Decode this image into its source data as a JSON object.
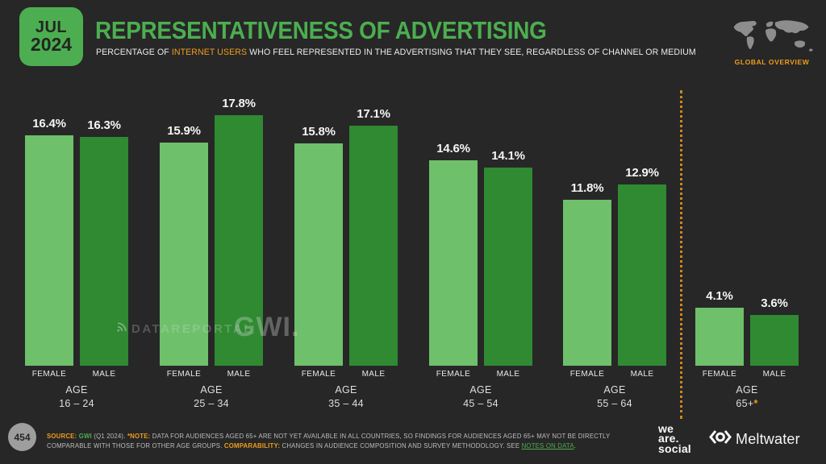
{
  "theme": {
    "bg": "#272727",
    "accent_green": "#4cae50",
    "bar_female": "#6ec06b",
    "bar_male": "#2f8a32",
    "orange": "#f09d1c",
    "dot_orange": "#cf8420"
  },
  "header": {
    "date_line1": "JUL",
    "date_line2": "2024",
    "title": "REPRESENTATIVENESS OF ADVERTISING",
    "subtitle_pre": "PERCENTAGE OF ",
    "subtitle_highlight": "INTERNET USERS",
    "subtitle_post": " WHO FEEL REPRESENTED IN THE ADVERTISING THAT THEY SEE, REGARDLESS OF CHANNEL OR MEDIUM",
    "global_overview_label": "GLOBAL OVERVIEW"
  },
  "chart_data": {
    "type": "bar",
    "title": "REPRESENTATIVENESS OF ADVERTISING",
    "unit": "%",
    "grid": false,
    "value_labels": true,
    "ylim": [
      0,
      18
    ],
    "category_prefix": "AGE",
    "categories": [
      "16 – 24",
      "25 – 34",
      "35 – 44",
      "45 – 54",
      "55 – 64",
      "65+"
    ],
    "footnote_index": 5,
    "footnote_marker": "*",
    "series": [
      {
        "name": "FEMALE",
        "values": [
          16.4,
          15.9,
          15.8,
          14.6,
          11.8,
          4.1
        ]
      },
      {
        "name": "MALE",
        "values": [
          16.3,
          17.8,
          17.1,
          14.1,
          12.9,
          3.6
        ]
      }
    ]
  },
  "watermarks": {
    "dataportal": "DATAREPORTAL",
    "gwi": "GWI."
  },
  "footer": {
    "page_number": "454",
    "source_segments": [
      {
        "text": "SOURCE: ",
        "style": "orange"
      },
      {
        "text": "GWI ",
        "style": "green"
      },
      {
        "text": "(Q1 2024). ",
        "style": "plain"
      },
      {
        "text": "*NOTE: ",
        "style": "orange"
      },
      {
        "text": "DATA FOR AUDIENCES AGED 65+ ARE NOT YET AVAILABLE IN ALL COUNTRIES, SO FINDINGS FOR AUDIENCES AGED 65+ MAY NOT BE DIRECTLY COMPARABLE WITH THOSE FOR OTHER AGE GROUPS. ",
        "style": "plain"
      },
      {
        "text": "COMPARABILITY: ",
        "style": "orange"
      },
      {
        "text": "CHANGES IN AUDIENCE COMPOSITION AND SURVEY METHODOLOGY. SEE ",
        "style": "plain"
      },
      {
        "text": "NOTES ON DATA",
        "style": "link"
      },
      {
        "text": ".",
        "style": "plain"
      }
    ],
    "we_are_social_lines": [
      "we",
      "are.",
      "social"
    ],
    "meltwater_label": "Meltwater"
  }
}
